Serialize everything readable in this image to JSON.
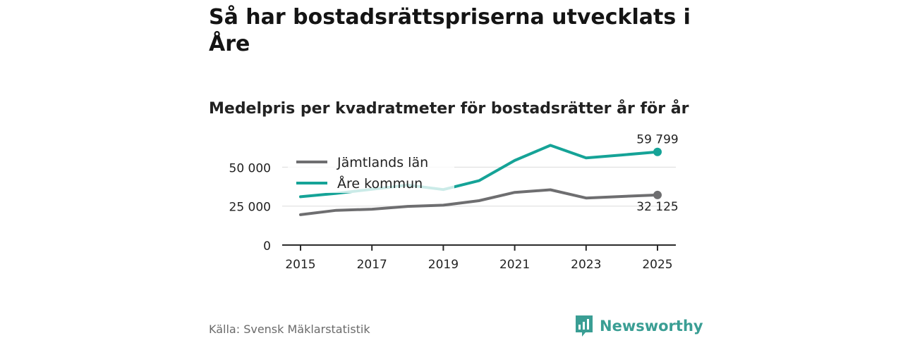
{
  "header": {
    "title": "Så har bostadsrättspriserna utvecklats i Åre",
    "subtitle": "Medelpris per kvadratmeter för bostadsrätter år för år"
  },
  "footer": {
    "source": "Källa: Svensk Mäklarstatistik",
    "brand": "Newsworthy"
  },
  "colors": {
    "jamtland": "#6e6e70",
    "are": "#15a397",
    "brand": "#3a9e94",
    "grid": "#dcdcdc",
    "axis": "#2b2b2b",
    "text": "#222222"
  },
  "chart_data": {
    "type": "line",
    "title": "Medelpris per kvadratmeter för bostadsrätter år för år",
    "xlabel": "",
    "ylabel": "",
    "x": [
      2015,
      2016,
      2017,
      2018,
      2019,
      2020,
      2021,
      2022,
      2023,
      2024,
      2025
    ],
    "xticks": [
      "2015",
      "2017",
      "2019",
      "2021",
      "2023",
      "2025"
    ],
    "xticks_values": [
      2015,
      2017,
      2019,
      2021,
      2023,
      2025
    ],
    "yticks": [
      "0",
      "25 000",
      "50 000"
    ],
    "yticks_values": [
      0,
      25000,
      50000
    ],
    "ylim": [
      0,
      66000
    ],
    "grid": true,
    "legend_position": "top-left",
    "series": [
      {
        "name": "Jämtlands län",
        "color": "#6e6e70",
        "values": [
          19500,
          22300,
          23000,
          24800,
          25600,
          28500,
          33800,
          35500,
          30200,
          31200,
          32125
        ],
        "end_label": "32 125"
      },
      {
        "name": "Åre kommun",
        "color": "#15a397",
        "values": [
          31000,
          33200,
          35800,
          38500,
          35600,
          41300,
          54300,
          64000,
          55900,
          57800,
          59799
        ],
        "end_label": "59 799"
      }
    ]
  }
}
